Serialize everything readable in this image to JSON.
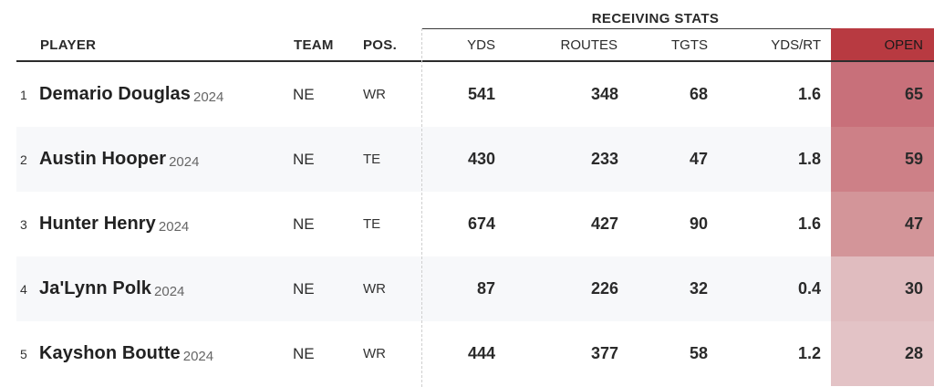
{
  "group_header": "RECEIVING STATS",
  "columns": {
    "player": "PLAYER",
    "team": "TEAM",
    "pos": "POS.",
    "yds": "YDS",
    "routes": "ROUTES",
    "tgts": "TGTS",
    "yds_rt": "YDS/RT",
    "open": "OPEN"
  },
  "colors": {
    "open_header": "#b83a41",
    "open_cells": [
      "#c8707a",
      "#cd8087",
      "#d39599",
      "#e0bcbf",
      "#e3c3c6"
    ]
  },
  "rows": [
    {
      "rank": "1",
      "name": "Demario Douglas",
      "year": "2024",
      "team": "NE",
      "pos": "WR",
      "yds": "541",
      "routes": "348",
      "tgts": "68",
      "yds_rt": "1.6",
      "open": "65"
    },
    {
      "rank": "2",
      "name": "Austin Hooper",
      "year": "2024",
      "team": "NE",
      "pos": "TE",
      "yds": "430",
      "routes": "233",
      "tgts": "47",
      "yds_rt": "1.8",
      "open": "59"
    },
    {
      "rank": "3",
      "name": "Hunter Henry",
      "year": "2024",
      "team": "NE",
      "pos": "TE",
      "yds": "674",
      "routes": "427",
      "tgts": "90",
      "yds_rt": "1.6",
      "open": "47"
    },
    {
      "rank": "4",
      "name": "Ja'Lynn Polk",
      "year": "2024",
      "team": "NE",
      "pos": "WR",
      "yds": "87",
      "routes": "226",
      "tgts": "32",
      "yds_rt": "0.4",
      "open": "30"
    },
    {
      "rank": "5",
      "name": "Kayshon Boutte",
      "year": "2024",
      "team": "NE",
      "pos": "WR",
      "yds": "444",
      "routes": "377",
      "tgts": "58",
      "yds_rt": "1.2",
      "open": "28"
    }
  ]
}
